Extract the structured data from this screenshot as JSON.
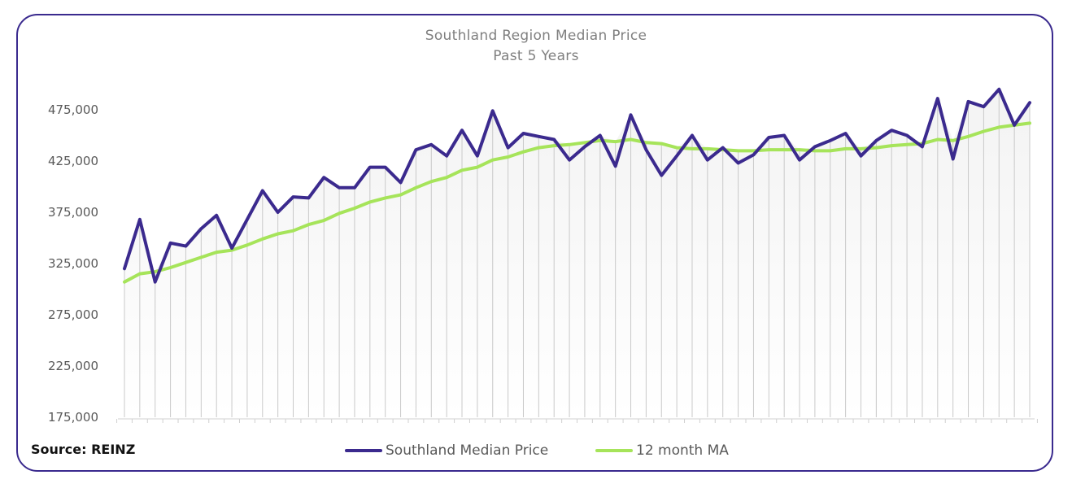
{
  "source_label": "Source: REINZ",
  "colors": {
    "frame_border": "#3a2a8e",
    "median_line": "#3b2a8e",
    "ma_line": "#a6e45a",
    "drop_lines": "#c9c9c9",
    "text": "#595959",
    "title": "#7f7f7f"
  },
  "chart_data": {
    "type": "line",
    "title": "Southland Region Median Price",
    "subtitle": "Past 5 Years",
    "xlabel": "",
    "ylabel": "",
    "ylim": [
      175000,
      500000
    ],
    "yticks": [
      175000,
      225000,
      275000,
      325000,
      375000,
      425000,
      475000
    ],
    "ytick_labels": [
      "175,000",
      "225,000",
      "275,000",
      "325,000",
      "375,000",
      "425,000",
      "475,000"
    ],
    "grid": false,
    "drop_lines": true,
    "legend_position": "bottom",
    "series": [
      {
        "name": "Southland Median Price",
        "color": "#3b2a8e",
        "values": [
          320000,
          368000,
          307000,
          345000,
          342000,
          359000,
          372000,
          340000,
          368000,
          396000,
          375000,
          390000,
          389000,
          409000,
          399000,
          399000,
          419000,
          419000,
          404000,
          436000,
          441000,
          430000,
          455000,
          430000,
          474000,
          438000,
          452000,
          449000,
          446000,
          426000,
          439000,
          450000,
          420000,
          470000,
          436000,
          411000,
          430000,
          450000,
          426000,
          438000,
          423000,
          431000,
          448000,
          450000,
          426000,
          439000,
          445000,
          452000,
          430000,
          445000,
          455000,
          450000,
          439000,
          486000,
          427000,
          483000,
          478000,
          495000,
          460000,
          482000
        ]
      },
      {
        "name": "12 month MA",
        "color": "#a6e45a",
        "values": [
          307000,
          315000,
          317000,
          321000,
          326000,
          331000,
          336000,
          338000,
          343000,
          349000,
          354000,
          357000,
          363000,
          367000,
          374000,
          379000,
          385000,
          389000,
          392000,
          399000,
          405000,
          409000,
          416000,
          419000,
          426000,
          429000,
          434000,
          438000,
          440000,
          441000,
          443000,
          445000,
          444000,
          446000,
          443000,
          442000,
          438000,
          437000,
          437000,
          436000,
          435000,
          435000,
          436000,
          436000,
          436000,
          435000,
          435000,
          437000,
          437000,
          438000,
          440000,
          441000,
          442000,
          446000,
          445000,
          449000,
          454000,
          458000,
          460000,
          462000
        ]
      }
    ]
  }
}
